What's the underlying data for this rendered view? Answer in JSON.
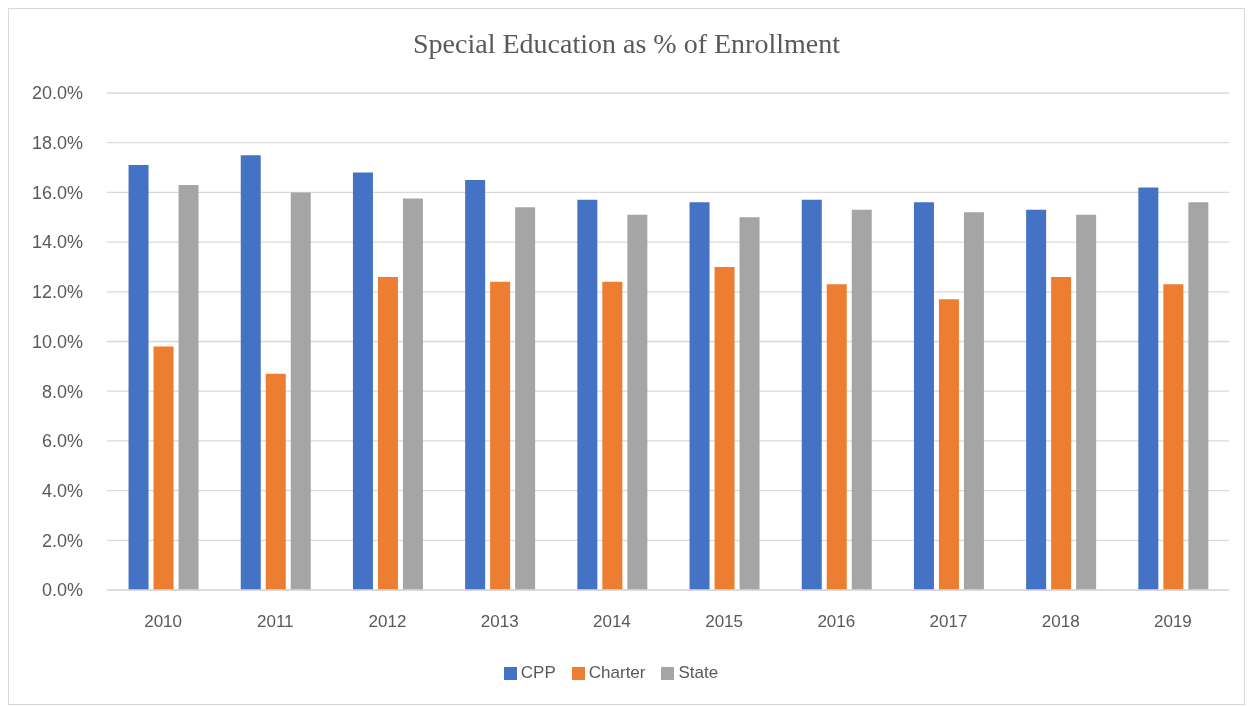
{
  "chart_data": {
    "type": "bar",
    "title": "Special Education as % of Enrollment",
    "categories": [
      "2010",
      "2011",
      "2012",
      "2013",
      "2014",
      "2015",
      "2016",
      "2017",
      "2018",
      "2019"
    ],
    "series": [
      {
        "name": "CPP",
        "color": "#4472c4",
        "values": [
          17.1,
          17.5,
          16.8,
          16.5,
          15.7,
          15.6,
          15.7,
          15.6,
          15.3,
          16.2
        ]
      },
      {
        "name": "Charter",
        "color": "#ed7d31",
        "values": [
          9.8,
          8.7,
          12.6,
          12.4,
          12.4,
          13.0,
          12.3,
          11.7,
          12.6,
          12.3
        ]
      },
      {
        "name": "State",
        "color": "#a5a5a5",
        "values": [
          16.3,
          16.0,
          15.75,
          15.4,
          15.1,
          15.0,
          15.3,
          15.2,
          15.1,
          15.6
        ]
      }
    ],
    "ylim": [
      0,
      20
    ],
    "yticks": [
      {
        "value": 0,
        "label": "0.0%"
      },
      {
        "value": 2,
        "label": "2.0%"
      },
      {
        "value": 4,
        "label": "4.0%"
      },
      {
        "value": 6,
        "label": "6.0%"
      },
      {
        "value": 8,
        "label": "8.0%"
      },
      {
        "value": 10,
        "label": "10.0%"
      },
      {
        "value": 12,
        "label": "12.0%"
      },
      {
        "value": 14,
        "label": "14.0%"
      },
      {
        "value": 16,
        "label": "16.0%"
      },
      {
        "value": 18,
        "label": "18.0%"
      },
      {
        "value": 20,
        "label": "20.0%"
      }
    ],
    "grid": "y",
    "legend": "bottom"
  }
}
